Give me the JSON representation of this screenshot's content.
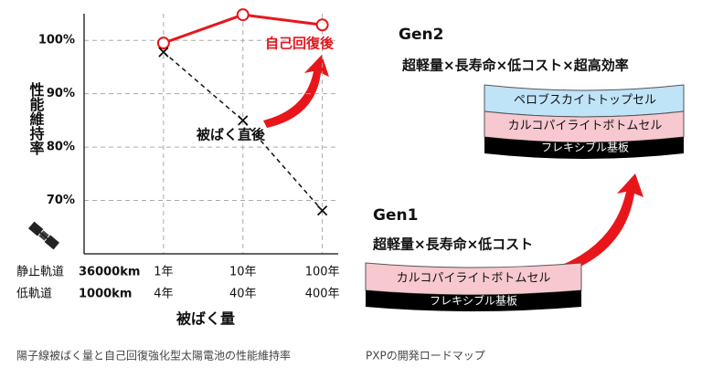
{
  "chart_data": {
    "type": "line",
    "y_axis_label": "性能維持率",
    "x_axis_label": "被ばく量",
    "categories": [
      "1年",
      "10年",
      "100年"
    ],
    "x_label_rows": [
      {
        "orbit": "静止軌道",
        "altitude": "36000km",
        "labels": [
          "1年",
          "10年",
          "100年"
        ]
      },
      {
        "orbit": "低軌道",
        "altitude": "1000km",
        "labels": [
          "4年",
          "40年",
          "400年"
        ]
      }
    ],
    "ylim": [
      60,
      105
    ],
    "yticks": [
      {
        "value": 70,
        "label": "70%"
      },
      {
        "value": 80,
        "label": "80%"
      },
      {
        "value": 90,
        "label": "90%"
      },
      {
        "value": 100,
        "label": "100%"
      }
    ],
    "grid": true,
    "series": [
      {
        "name": "自己回復後",
        "color": "#e8161b",
        "values": [
          99.5,
          104.8,
          102.9
        ]
      },
      {
        "name": "被ばく直後",
        "color": "#111111",
        "values": [
          97.8,
          85,
          68.1
        ]
      }
    ]
  },
  "roadmap": {
    "gen2": {
      "title": "Gen2",
      "features": "超軽量×長寿命×低コスト×超高効率",
      "layers": [
        "ペロブスカイトトップセル",
        "カルコパイライトボトムセル",
        "フレキシブル基板"
      ]
    },
    "gen1": {
      "title": "Gen1",
      "features": "超軽量×長寿命×低コスト",
      "layers": [
        "カルコパイライトボトムセル",
        "フレキシブル基板"
      ]
    }
  },
  "captions": [
    "陽子線被ばく量と自己回復強化型太陽電池の性能維持率",
    "PXPの開発ロードマップ"
  ]
}
